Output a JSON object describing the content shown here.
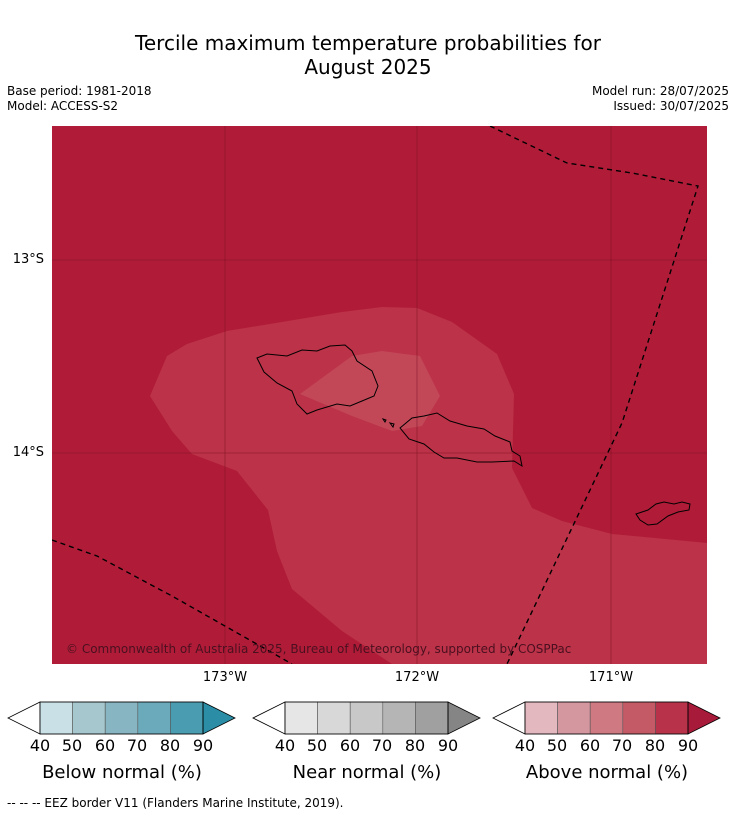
{
  "title_line1": "Tercile maximum temperature probabilities for",
  "title_line2": "August 2025",
  "base_period": "Base period: 1981-2018",
  "model": "Model: ACCESS-S2",
  "model_run": "Model run: 28/07/2025",
  "issued": "Issued: 30/07/2025",
  "copyright": "© Commonwealth of Australia 2025, Bureau of Meteorology, supported by COSPPac",
  "lat_labels": [
    "13°S",
    "14°S"
  ],
  "lon_labels": [
    "173°W",
    "172°W",
    "171°W"
  ],
  "colorbars": [
    {
      "title": "Below normal (%)",
      "ticks": [
        "40",
        "50",
        "60",
        "70",
        "80",
        "90"
      ],
      "colors": [
        "#c8e0e6",
        "#a6c7cd",
        "#88b5c2",
        "#6aaabb",
        "#4a9db0",
        "#2b8ea6"
      ]
    },
    {
      "title": "Near normal (%)",
      "ticks": [
        "40",
        "50",
        "60",
        "70",
        "80",
        "90"
      ],
      "colors": [
        "#e6e6e6",
        "#d8d8d8",
        "#c8c8c8",
        "#b5b5b5",
        "#a0a0a0",
        "#858585"
      ]
    },
    {
      "title": "Above normal (%)",
      "ticks": [
        "40",
        "50",
        "60",
        "70",
        "80",
        "90"
      ],
      "colors": [
        "#e4b8bf",
        "#d4979f",
        "#cf7a83",
        "#c45a66",
        "#b83249",
        "#a81a3a"
      ]
    }
  ],
  "footnote": "--  --  -- EEZ border V11 (Flanders Marine Institute, 2019).",
  "map_colors": {
    "background": "#b01c38",
    "zone80": "#bc3248",
    "zone70": "#c24858"
  }
}
